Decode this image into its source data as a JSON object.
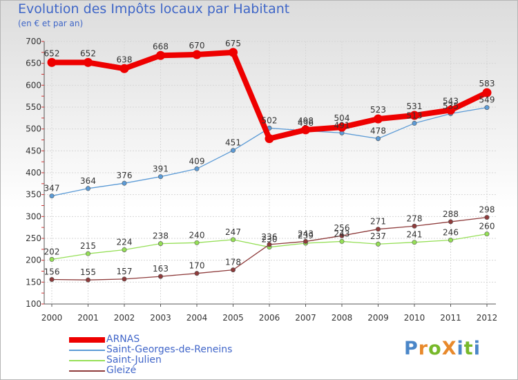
{
  "title": "Evolution des Impôts locaux par Habitant",
  "subtitle": "(en € et par an)",
  "logo": {
    "text": "ProXiti",
    "letters": [
      {
        "ch": "P",
        "color": "#4a86c8"
      },
      {
        "ch": "r",
        "color": "#e8892b"
      },
      {
        "ch": "o",
        "color": "#77b82a"
      },
      {
        "ch": "X",
        "color": "#e8892b"
      },
      {
        "ch": "i",
        "color": "#4a86c8"
      },
      {
        "ch": "t",
        "color": "#77b82a"
      },
      {
        "ch": "i",
        "color": "#4a86c8"
      }
    ]
  },
  "chart_data": {
    "type": "line",
    "title": "Evolution des Impôts locaux par Habitant",
    "subtitle": "(en € et par an)",
    "xlabel": "",
    "ylabel": "",
    "x": [
      "2000",
      "2001",
      "2002",
      "2003",
      "2004",
      "2005",
      "2006",
      "2007",
      "2008",
      "2009",
      "2010",
      "2011",
      "2012"
    ],
    "ylim": [
      100,
      700
    ],
    "yticks": [
      100,
      150,
      200,
      250,
      300,
      350,
      400,
      450,
      500,
      550,
      600,
      650,
      700
    ],
    "grid": true,
    "legend_position": "bottom-left",
    "series": [
      {
        "name": "ARNAS",
        "color": "#ee0000",
        "emphasis": "thick",
        "values": [
          652,
          652,
          638,
          668,
          670,
          675,
          478,
          498,
          504,
          523,
          531,
          543,
          583
        ],
        "labels": [
          "652",
          "652",
          "638",
          "668",
          "670",
          "675",
          "",
          "498",
          "504",
          "523",
          "531",
          "543",
          "583"
        ]
      },
      {
        "name": "Saint-Georges-de-Reneins",
        "color": "#5c9bd6",
        "emphasis": "thin",
        "values": [
          347,
          364,
          376,
          391,
          409,
          451,
          502,
          496,
          491,
          478,
          513,
          535,
          549
        ],
        "labels": [
          "347",
          "364",
          "376",
          "391",
          "409",
          "451",
          "502",
          "496",
          "491",
          "478",
          "513",
          "535",
          "549"
        ]
      },
      {
        "name": "Saint-Julien",
        "color": "#95df56",
        "emphasis": "thin",
        "values": [
          202,
          215,
          224,
          238,
          240,
          247,
          230,
          239,
          243,
          237,
          241,
          246,
          260
        ],
        "labels": [
          "202",
          "215",
          "224",
          "238",
          "240",
          "247",
          "230",
          "239",
          "243",
          "237",
          "241",
          "246",
          "260"
        ]
      },
      {
        "name": "Gleizé",
        "color": "#8e3b3b",
        "emphasis": "thin",
        "values": [
          156,
          155,
          157,
          163,
          170,
          178,
          236,
          243,
          256,
          271,
          278,
          288,
          298
        ],
        "labels": [
          "156",
          "155",
          "157",
          "163",
          "170",
          "178",
          "236",
          "243",
          "256",
          "271",
          "278",
          "288",
          "298"
        ]
      }
    ]
  }
}
